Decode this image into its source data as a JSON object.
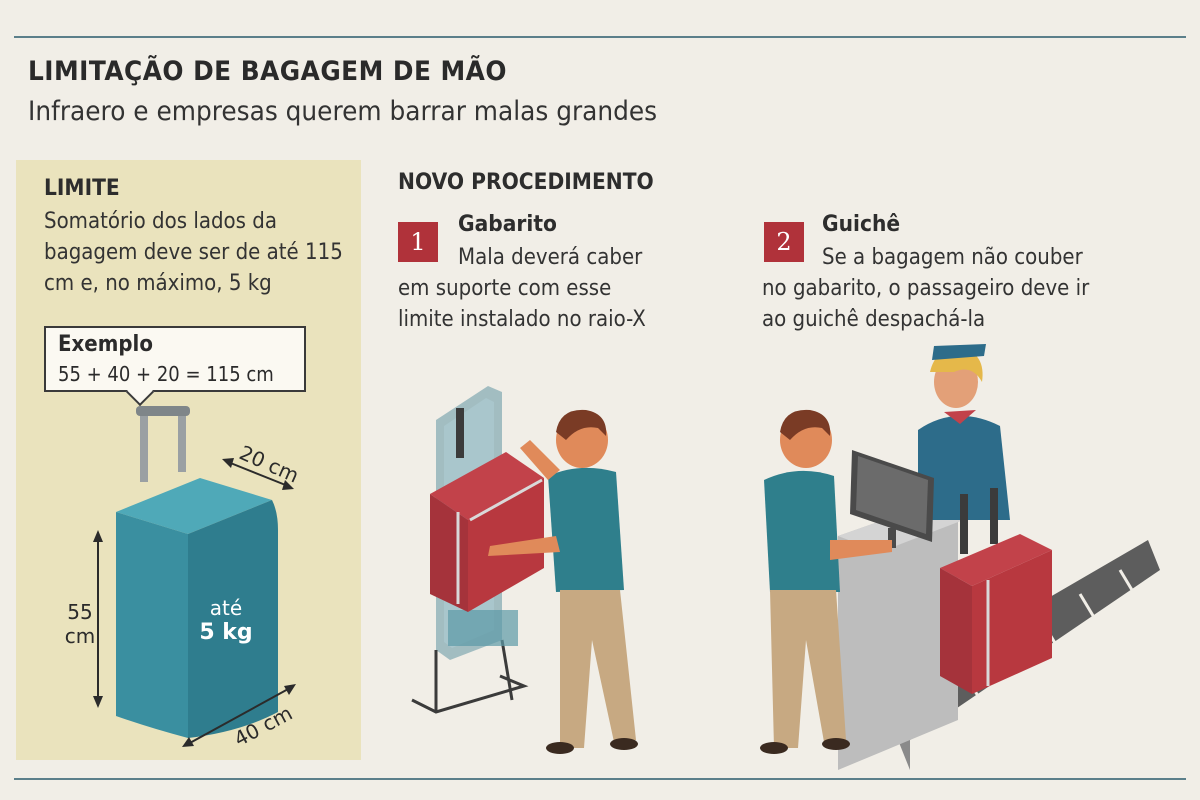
{
  "header": {
    "title": "LIMITAÇÃO DE BAGAGEM DE MÃO",
    "subtitle": "Infraero e empresas querem barrar malas grandes"
  },
  "limit": {
    "heading": "LIMITE",
    "text": "Somatório dos lados da bagagem deve ser de até 115 cm e, no máximo, 5 kg",
    "example_title": "Exemplo",
    "example_formula": "55 + 40 + 20  = 115 cm",
    "suitcase": {
      "height_label_1": "55",
      "height_label_2": "cm",
      "width_label": "40 cm",
      "depth_label": "20 cm",
      "weight_label_1": "até",
      "weight_label_2": "5 kg"
    }
  },
  "procedure": {
    "heading": "NOVO PROCEDIMENTO",
    "steps": [
      {
        "number": "1",
        "title": "Gabarito",
        "text_first": "Mala deverá caber",
        "text_rest": "em suporte com esse limite instalado no raio-X"
      },
      {
        "number": "2",
        "title": "Guichê",
        "text_first": "Se a bagagem não couber",
        "text_rest": "no gabarito, o passageiro deve ir ao guichê despachá-la"
      }
    ]
  },
  "colors": {
    "accent_red": "#b0323a",
    "suitcase_teal": "#3a8fa0",
    "panel_beige": "#eae3bd",
    "shirt_teal": "#2f7f8c"
  },
  "icons": [
    "suitcase-illustration",
    "gauge-frame-illustration",
    "checkin-counter-illustration",
    "passenger-illustration",
    "attendant-illustration",
    "monitor-illustration",
    "conveyor-belt-illustration"
  ]
}
